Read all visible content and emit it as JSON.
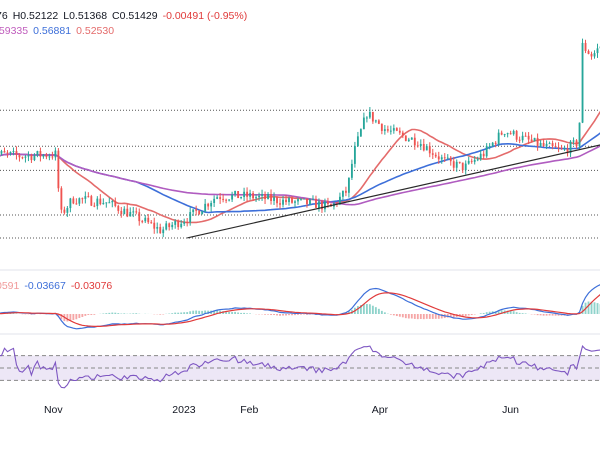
{
  "legend": {
    "ohlc": [
      {
        "text": "76",
        "color": "#131722"
      },
      {
        "text": "H0.52122",
        "color": "#131722"
      },
      {
        "text": "L0.51368",
        "color": "#131722"
      },
      {
        "text": "C0.51429",
        "color": "#131722"
      },
      {
        "text": "-0.00491 (-0.95%)",
        "color": "#e03a3a"
      }
    ],
    "ma": [
      {
        "text": ".59335",
        "color": "#c05dbd"
      },
      {
        "text": "0.56881",
        "color": "#3d6fd9"
      },
      {
        "text": "0.52530",
        "color": "#e46b6b"
      }
    ],
    "macd": [
      {
        "text": "0591",
        "color": "#f09a9a"
      },
      {
        "text": "-0.03667",
        "color": "#3d6fd9"
      },
      {
        "text": "-0.03076",
        "color": "#e03a3a"
      }
    ]
  },
  "x_axis": {
    "labels": [
      {
        "text": "Nov",
        "month_index": 1
      },
      {
        "text": "2023",
        "month_index": 3
      },
      {
        "text": "Feb",
        "month_index": 4
      },
      {
        "text": "Apr",
        "month_index": 6
      },
      {
        "text": "Jun",
        "month_index": 8
      }
    ]
  },
  "colors": {
    "up": "#26a69a",
    "down": "#ef5350",
    "ma_fast": "#e46b6b",
    "ma_mid": "#3d6fd9",
    "ma_slow": "#b05cc0",
    "trendline": "#2a2a2a",
    "macd_line": "#3d6fd9",
    "signal_line": "#e03a3a",
    "rsi_line": "#7e57c2",
    "rsi_band": "#ede7f6"
  },
  "chart_data": [
    {
      "type": "candlestick",
      "title": "",
      "x_range_months": [
        0,
        9.4
      ],
      "ylim": [
        0.36,
        0.8
      ],
      "seed": 7,
      "anchors": [
        [
          0.0,
          0.55
        ],
        [
          0.5,
          0.545
        ],
        [
          1.05,
          0.548
        ],
        [
          1.1,
          0.44
        ],
        [
          1.3,
          0.47
        ],
        [
          1.8,
          0.465
        ],
        [
          2.25,
          0.44
        ],
        [
          2.65,
          0.415
        ],
        [
          3.1,
          0.44
        ],
        [
          3.5,
          0.475
        ],
        [
          4.0,
          0.475
        ],
        [
          4.6,
          0.465
        ],
        [
          5.0,
          0.462
        ],
        [
          5.25,
          0.455
        ],
        [
          5.5,
          0.485
        ],
        [
          5.6,
          0.55
        ],
        [
          5.8,
          0.62
        ],
        [
          6.1,
          0.59
        ],
        [
          6.6,
          0.57
        ],
        [
          7.0,
          0.535
        ],
        [
          7.3,
          0.525
        ],
        [
          7.6,
          0.55
        ],
        [
          7.9,
          0.59
        ],
        [
          8.2,
          0.575
        ],
        [
          8.5,
          0.562
        ],
        [
          8.8,
          0.554
        ],
        [
          9.05,
          0.57
        ],
        [
          9.08,
          0.74
        ],
        [
          9.25,
          0.72
        ],
        [
          9.4,
          0.74
        ]
      ],
      "series": [
        {
          "name": "",
          "kind": "sma",
          "period": 20
        },
        {
          "name": "",
          "kind": "sma",
          "period": 50
        },
        {
          "name": "",
          "kind": "sma",
          "period": 100
        }
      ],
      "horizontal_levels": [
        0.625,
        0.562,
        0.52,
        0.442,
        0.402
      ],
      "trendline": {
        "from": [
          3.05,
          0.402
        ],
        "to": [
          9.4,
          0.565
        ]
      }
    },
    {
      "type": "line",
      "title": "",
      "indicator": "MACD",
      "series": [
        {
          "name": "",
          "kind": "macd"
        },
        {
          "name": "",
          "kind": "signal"
        },
        {
          "name": "",
          "kind": "histogram"
        }
      ]
    },
    {
      "type": "line",
      "title": "",
      "indicator": "RSI",
      "ylim": [
        0,
        100
      ],
      "bands": [
        70,
        50,
        30
      ]
    }
  ]
}
